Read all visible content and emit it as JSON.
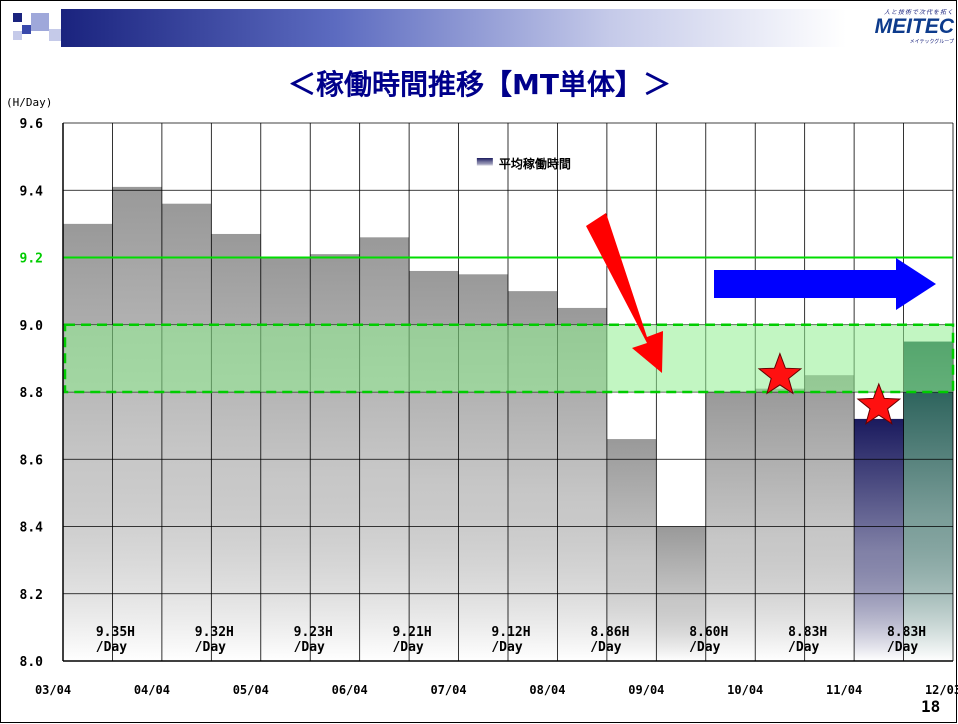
{
  "slide": {
    "title": "＜稼働時間推移【MT単体】＞",
    "page_number": "18"
  },
  "logo": {
    "tagline": "人と技術で次代を拓く",
    "brand": "MEITEC",
    "group": "メイテックグループ"
  },
  "chart_data": {
    "type": "bar",
    "ylabel": "(H/Day)",
    "ylim": [
      8.0,
      9.6
    ],
    "yticks": [
      "9.6",
      "9.4",
      "9.2",
      "9.0",
      "8.8",
      "8.6",
      "8.4",
      "8.2",
      "8.0"
    ],
    "x_tick_labels": [
      "03/04",
      "04/04",
      "05/04",
      "06/04",
      "07/04",
      "08/04",
      "09/04",
      "10/04",
      "11/04",
      "12/03"
    ],
    "legend": "平均稼働時間",
    "legend_position": "top-center",
    "grid": true,
    "values": [
      9.3,
      9.41,
      9.36,
      9.27,
      9.2,
      9.21,
      9.26,
      9.16,
      9.15,
      9.1,
      9.05,
      8.66,
      8.4,
      8.8,
      8.81,
      8.85,
      8.72,
      8.95
    ],
    "highlight_colors": {
      "gray": "#999999",
      "navy": "#1a1a5e",
      "teal": "#0f4d45"
    },
    "reference_line": {
      "value": 9.2,
      "label": "9.2",
      "color": "#00dd00"
    },
    "target_band": {
      "from": 8.8,
      "to": 9.0,
      "color": "#90ee90"
    },
    "annotations": [
      {
        "label": "9.35H\n/Day",
        "after_index": 0
      },
      {
        "label": "9.32H\n/Day",
        "after_index": 2
      },
      {
        "label": "9.23H\n/Day",
        "after_index": 4
      },
      {
        "label": "9.21H\n/Day",
        "after_index": 6
      },
      {
        "label": "9.12H\n/Day",
        "after_index": 8
      },
      {
        "label": "8.86H\n/Day",
        "after_index": 10
      },
      {
        "label": "8.60H\n/Day",
        "after_index": 12
      },
      {
        "label": "8.83H\n/Day",
        "after_index": 14
      },
      {
        "label": "8.83H\n/Day",
        "after_index": 16
      }
    ],
    "star_markers": [
      14,
      16
    ],
    "arrows": [
      {
        "direction": "down",
        "color": "#ff0000"
      },
      {
        "direction": "right",
        "color": "#0000ff"
      }
    ]
  }
}
